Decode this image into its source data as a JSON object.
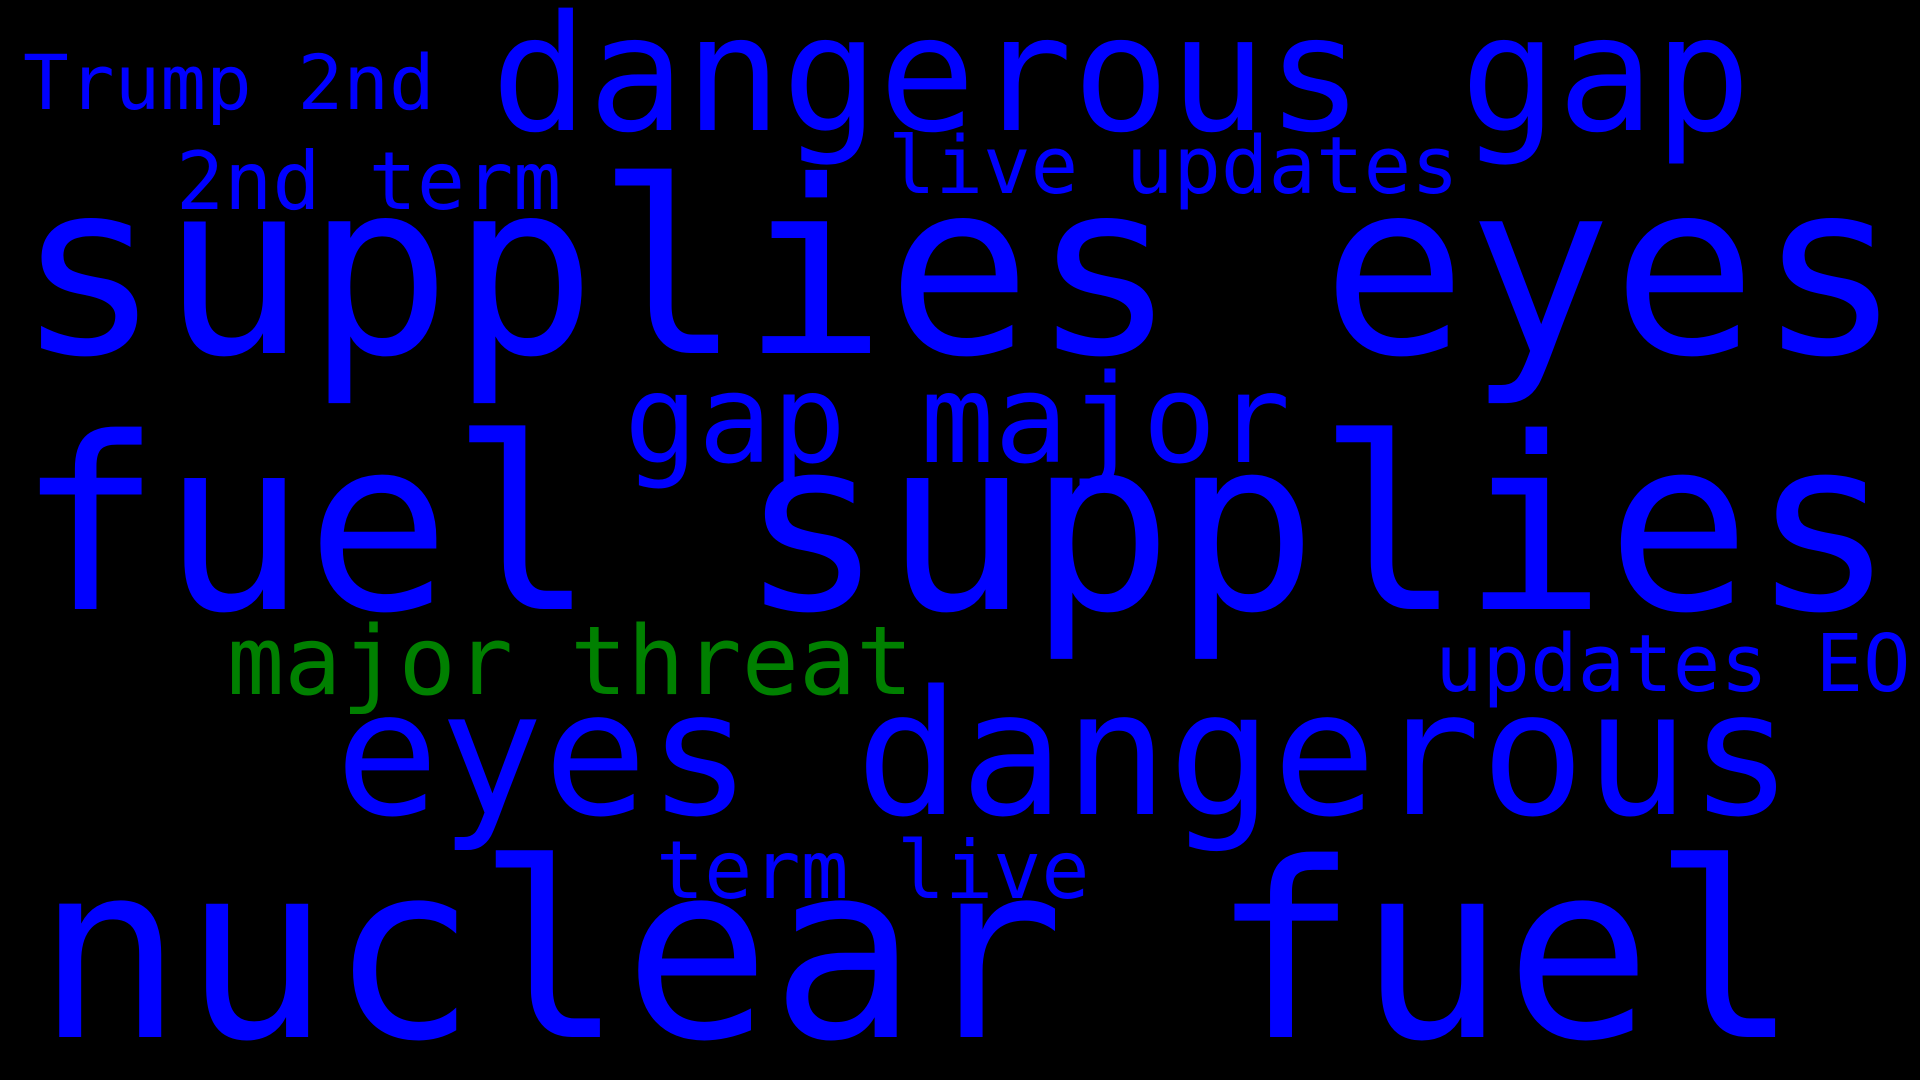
{
  "background_color": "#000000",
  "colors": {
    "primary": "#0000ff",
    "accent": "#008000"
  },
  "words": [
    {
      "text": "Trump 2nd",
      "color": "#0000ff"
    },
    {
      "text": "dangerous gap",
      "color": "#0000ff"
    },
    {
      "text": "2nd term",
      "color": "#0000ff"
    },
    {
      "text": "live updates",
      "color": "#0000ff"
    },
    {
      "text": "supplies eyes",
      "color": "#0000ff"
    },
    {
      "text": "gap major",
      "color": "#0000ff"
    },
    {
      "text": "fuel supplies",
      "color": "#0000ff"
    },
    {
      "text": "major threat",
      "color": "#008000"
    },
    {
      "text": "updates EO",
      "color": "#0000ff"
    },
    {
      "text": "eyes dangerous",
      "color": "#0000ff"
    },
    {
      "text": "term live",
      "color": "#0000ff"
    },
    {
      "text": "nuclear fuel",
      "color": "#0000ff"
    }
  ]
}
